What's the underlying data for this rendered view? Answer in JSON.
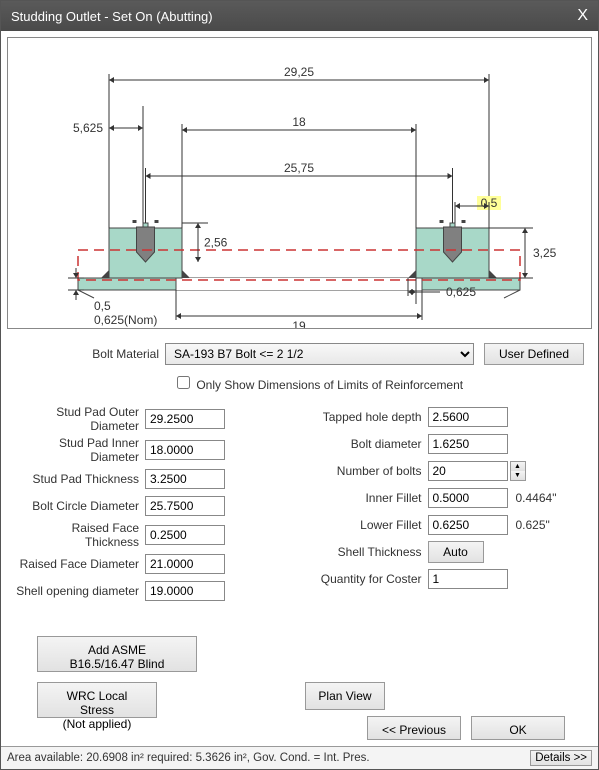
{
  "window": {
    "title": "Studding Outlet - Set On (Abutting)",
    "close": "X"
  },
  "diagram": {
    "bg": "#ffffff",
    "pad_fill": "#a8d8c8",
    "pad_stroke": "#444444",
    "bolt_fill": "#808080",
    "dim_color": "#333333",
    "red_dash": "#cc3333",
    "highlight_fill": "#ffff99",
    "labels": {
      "outer_dia": "29,25",
      "raised_face_offset": "5,625",
      "inner_dia": "18",
      "bolt_circle": "25,75",
      "inner_fillet": "0,5",
      "face_th": "2,56",
      "pad_th": "3,25",
      "lower_fillet": "0,625",
      "opening": "19",
      "shell_note1": "0,5",
      "shell_note2": "0,625(Nom)"
    }
  },
  "material": {
    "label": "Bolt Material",
    "value": "SA-193 B7 Bolt <= 2 1/2",
    "user_defined": "User Defined"
  },
  "checkbox": {
    "label": "Only Show Dimensions of Limits of Reinforcement",
    "checked": false
  },
  "left_fields": [
    {
      "label": "Stud Pad Outer Diameter",
      "value": "29.2500\""
    },
    {
      "label": "Stud Pad Inner Diameter",
      "value": "18.0000\""
    },
    {
      "label": "Stud Pad Thickness",
      "value": "3.2500\""
    },
    {
      "label": "Bolt Circle Diameter",
      "value": "25.7500\""
    },
    {
      "label": "Raised Face Thickness",
      "value": "0.2500\""
    },
    {
      "label": "Raised Face Diameter",
      "value": "21.0000\""
    },
    {
      "label": "Shell opening diameter",
      "value": "19.0000\""
    }
  ],
  "right_fields": [
    {
      "label": "Tapped hole depth",
      "value": "2.5600\"",
      "suffix": ""
    },
    {
      "label": "Bolt diameter",
      "value": "1.6250\"",
      "suffix": ""
    },
    {
      "label": "Number of bolts",
      "value": "20",
      "spinner": true
    },
    {
      "label": "Inner Fillet",
      "value": "0.5000\"",
      "suffix": "0.4464\""
    },
    {
      "label": "Lower Fillet",
      "value": "0.6250\"",
      "suffix": "0.625\""
    },
    {
      "label": "Shell Thickness",
      "auto": "Auto"
    },
    {
      "label": "Quantity for Coster",
      "value": "1"
    }
  ],
  "buttons": {
    "add_blind": "Add ASME\nB16.5/16.47 Blind",
    "wrc": "WRC Local Stress\n(Not applied)",
    "plan_view": "Plan View",
    "previous": "<< Previous",
    "ok": "OK",
    "details": "Details >>"
  },
  "status": {
    "text": "Area available: 20.6908 in²    required: 5.3626 in², Gov. Cond. = Int. Pres."
  }
}
